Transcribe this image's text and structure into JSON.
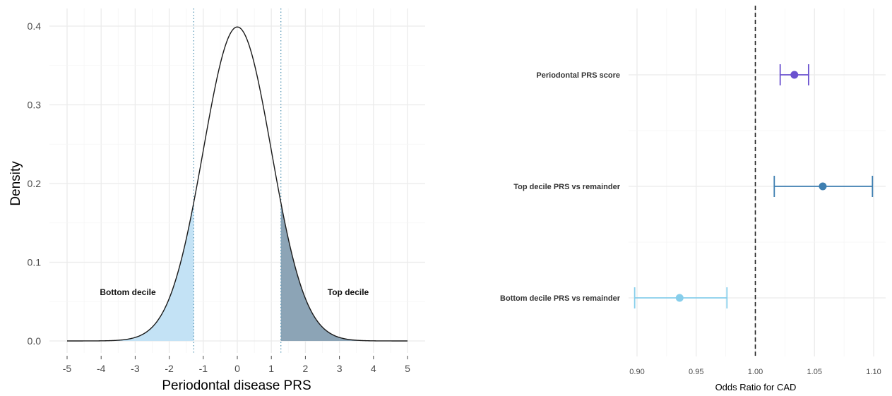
{
  "chart_data": [
    {
      "type": "area",
      "xlabel": "Periodontal disease PRS",
      "ylabel": "Density",
      "xlim": [
        -5,
        5
      ],
      "ylim": [
        0,
        0.4
      ],
      "x_ticks": [
        "-5",
        "-4",
        "-3",
        "-2",
        "-1",
        "0",
        "1",
        "2",
        "3",
        "4",
        "5"
      ],
      "y_ticks": [
        "0.0",
        "0.1",
        "0.2",
        "0.3",
        "0.4"
      ],
      "curve": "standard normal density",
      "cutoffs": [
        -1.28,
        1.28
      ],
      "regions": [
        {
          "label": "Bottom decile",
          "from": -5,
          "to": -1.28,
          "color": "#c3e2f5"
        },
        {
          "label": "Top decile",
          "from": 1.28,
          "to": 5,
          "color": "#8ca4b6"
        }
      ],
      "grid": true
    },
    {
      "type": "scatter",
      "subtype": "forest",
      "xlabel": "Odds Ratio for CAD",
      "xlim": [
        0.9,
        1.1
      ],
      "x_ticks": [
        "0.90",
        "0.95",
        "1.00",
        "1.05",
        "1.10"
      ],
      "reference_line": 1.0,
      "grid": true,
      "series": [
        {
          "name": "Periodontal PRS score",
          "estimate": 1.033,
          "lower": 1.021,
          "upper": 1.045,
          "color": "#6a51cf"
        },
        {
          "name": "Top decile PRS vs remainder",
          "estimate": 1.057,
          "lower": 1.016,
          "upper": 1.099,
          "color": "#3e7fb1"
        },
        {
          "name": "Bottom decile PRS vs remainder",
          "estimate": 0.936,
          "lower": 0.898,
          "upper": 0.976,
          "color": "#87ceeb"
        }
      ]
    }
  ]
}
